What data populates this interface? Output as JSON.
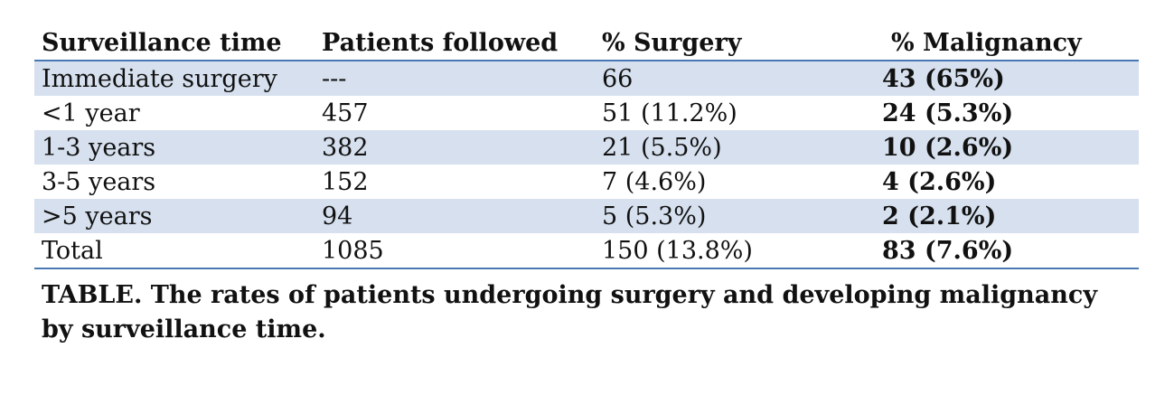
{
  "table": {
    "headers": [
      "Surveillance time",
      "Patients followed",
      "% Surgery",
      "% Malignancy"
    ],
    "rows": [
      [
        "Immediate surgery",
        "---",
        "66",
        "43 (65%)"
      ],
      [
        "<1 year",
        "457",
        "51 (11.2%)",
        "24 (5.3%)"
      ],
      [
        "1-3 years",
        "382",
        "21 (5.5%)",
        "10 (2.6%)"
      ],
      [
        "3-5 years",
        "152",
        "7 (4.6%)",
        "4 (2.6%)"
      ],
      [
        ">5 years",
        "94",
        "5 (5.3%)",
        "2 (2.1%)"
      ],
      [
        "Total",
        "1085",
        "150 (13.8%)",
        "83 (7.6%)"
      ]
    ]
  },
  "caption": "TABLE. The rates of patients undergoing surgery and developing malignancy by surveillance time.",
  "colors": {
    "shaded_row": "#d6e0ee",
    "rule": "#4a78b5"
  }
}
